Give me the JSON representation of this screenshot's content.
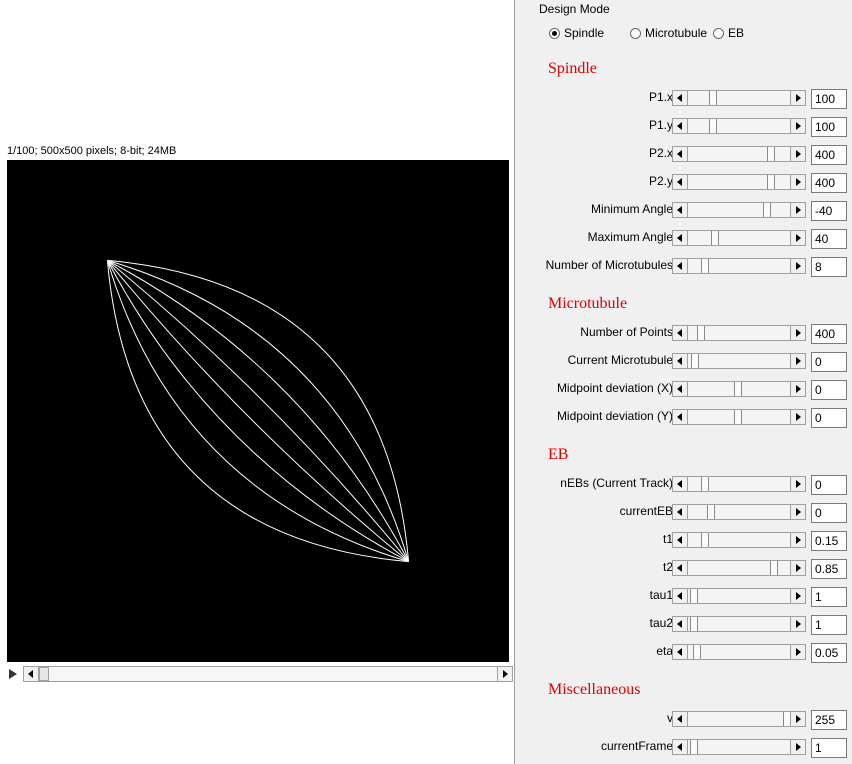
{
  "image": {
    "info": "1/100; 500x500 pixels; 8-bit; 24MB",
    "background": "#000000",
    "stroke": "#ffffff"
  },
  "panel": {
    "design_mode": {
      "label": "Design Mode",
      "options": [
        {
          "label": "Spindle",
          "checked": true
        },
        {
          "label": "Microtubule",
          "checked": false
        },
        {
          "label": "EB",
          "checked": false
        }
      ]
    },
    "sections": [
      {
        "title": "Spindle",
        "rows": [
          {
            "label": "P1.x",
            "value": "100"
          },
          {
            "label": "P1.y",
            "value": "100"
          },
          {
            "label": "P2.x",
            "value": "400"
          },
          {
            "label": "P2.y",
            "value": "400"
          },
          {
            "label": "Minimum Angle",
            "value": "-40"
          },
          {
            "label": "Maximum Angle",
            "value": "40"
          },
          {
            "label": "Number of Microtubules",
            "value": "8"
          }
        ]
      },
      {
        "title": "Microtubule",
        "rows": [
          {
            "label": "Number of Points",
            "value": "400"
          },
          {
            "label": "Current Microtubule",
            "value": "0"
          },
          {
            "label": "Midpoint deviation (X)",
            "value": "0"
          },
          {
            "label": "Midpoint deviation (Y)",
            "value": "0"
          }
        ]
      },
      {
        "title": "EB",
        "rows": [
          {
            "label": "nEBs (Current Track)",
            "value": "0"
          },
          {
            "label": "currentEB",
            "value": "0"
          },
          {
            "label": "t1",
            "value": "0.15"
          },
          {
            "label": "t2",
            "value": "0.85"
          },
          {
            "label": "tau1",
            "value": "1"
          },
          {
            "label": "tau2",
            "value": "1"
          },
          {
            "label": "eta",
            "value": "0.05"
          }
        ]
      },
      {
        "title": "Miscellaneous",
        "rows": [
          {
            "label": "v",
            "value": "255"
          },
          {
            "label": "currentFrame",
            "value": "1"
          }
        ]
      }
    ]
  }
}
